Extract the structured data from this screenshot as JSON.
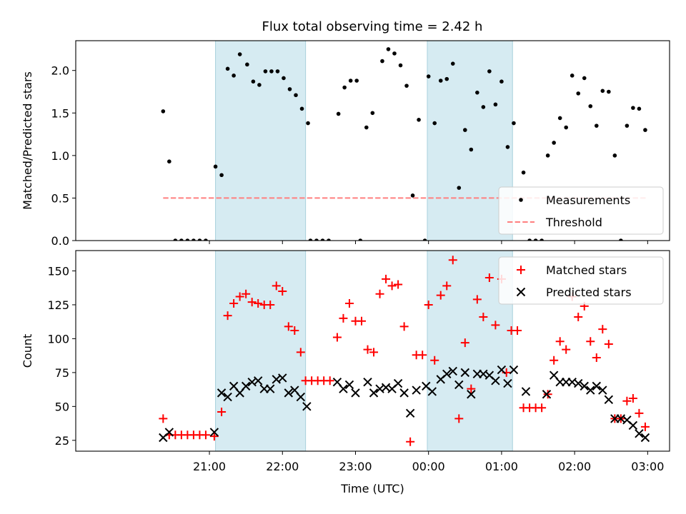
{
  "title": "Flux total observing time = 2.42 h",
  "chart_data": [
    {
      "type": "scatter",
      "ylabel": "Matched/Predicted stars",
      "xlabel": "",
      "ylim": [
        0,
        2.35
      ],
      "yticks": [
        0.0,
        0.5,
        1.0,
        1.5,
        2.0
      ],
      "ytick_labels": [
        "0.0",
        "0.5",
        "1.0",
        "1.5",
        "2.0"
      ],
      "x_format": "HH:MM elapsed hours since 21:00 UTC",
      "shaded_intervals": [
        [
          "21:05",
          "22:19"
        ],
        [
          "23:59",
          "01:09"
        ]
      ],
      "threshold": {
        "name": "Threshold",
        "y": 0.5,
        "x_range": [
          "20:22",
          "02:59"
        ],
        "color": "#ff7f7f"
      },
      "legend": {
        "position": "lower-right",
        "entries": [
          "Measurements",
          "Threshold"
        ]
      },
      "series": [
        {
          "name": "Measurements",
          "color": "#000000",
          "points": [
            [
              "20:22",
              1.52
            ],
            [
              "20:27",
              0.93
            ],
            [
              "20:32",
              0.0
            ],
            [
              "20:37",
              0.0
            ],
            [
              "20:42",
              0.0
            ],
            [
              "20:47",
              0.0
            ],
            [
              "20:52",
              0.0
            ],
            [
              "20:57",
              0.0
            ],
            [
              "21:05",
              0.87
            ],
            [
              "21:10",
              0.77
            ],
            [
              "21:15",
              2.02
            ],
            [
              "21:20",
              1.94
            ],
            [
              "21:25",
              2.19
            ],
            [
              "21:31",
              2.07
            ],
            [
              "21:36",
              1.87
            ],
            [
              "21:41",
              1.83
            ],
            [
              "21:46",
              1.99
            ],
            [
              "21:51",
              1.99
            ],
            [
              "21:56",
              1.99
            ],
            [
              "22:01",
              1.91
            ],
            [
              "22:06",
              1.78
            ],
            [
              "22:11",
              1.71
            ],
            [
              "22:16",
              1.55
            ],
            [
              "22:21",
              1.38
            ],
            [
              "22:23",
              0.0
            ],
            [
              "22:28",
              0.0
            ],
            [
              "22:33",
              0.0
            ],
            [
              "22:38",
              0.0
            ],
            [
              "22:46",
              1.49
            ],
            [
              "22:51",
              1.8
            ],
            [
              "22:56",
              1.88
            ],
            [
              "23:01",
              1.88
            ],
            [
              "23:04",
              0.0
            ],
            [
              "23:09",
              1.33
            ],
            [
              "23:14",
              1.5
            ],
            [
              "23:22",
              2.11
            ],
            [
              "23:27",
              2.25
            ],
            [
              "23:32",
              2.2
            ],
            [
              "23:37",
              2.06
            ],
            [
              "23:42",
              1.82
            ],
            [
              "23:47",
              0.53
            ],
            [
              "23:52",
              1.42
            ],
            [
              "23:57",
              0.0
            ],
            [
              "00:00",
              1.93
            ],
            [
              "00:05",
              1.38
            ],
            [
              "00:10",
              1.88
            ],
            [
              "00:15",
              1.9
            ],
            [
              "00:20",
              2.08
            ],
            [
              "00:25",
              0.62
            ],
            [
              "00:30",
              1.3
            ],
            [
              "00:35",
              1.07
            ],
            [
              "00:40",
              1.74
            ],
            [
              "00:45",
              1.57
            ],
            [
              "00:50",
              1.99
            ],
            [
              "00:55",
              1.6
            ],
            [
              "01:00",
              1.87
            ],
            [
              "01:05",
              1.1
            ],
            [
              "01:10",
              1.38
            ],
            [
              "01:18",
              0.8
            ],
            [
              "01:23",
              0.0
            ],
            [
              "01:28",
              0.0
            ],
            [
              "01:33",
              0.0
            ],
            [
              "01:38",
              1.0
            ],
            [
              "01:43",
              1.15
            ],
            [
              "01:48",
              1.44
            ],
            [
              "01:53",
              1.33
            ],
            [
              "01:58",
              1.94
            ],
            [
              "02:03",
              1.73
            ],
            [
              "02:08",
              1.91
            ],
            [
              "02:13",
              1.58
            ],
            [
              "02:18",
              1.35
            ],
            [
              "02:23",
              1.76
            ],
            [
              "02:28",
              1.75
            ],
            [
              "02:33",
              1.0
            ],
            [
              "02:38",
              0.0
            ],
            [
              "02:43",
              1.35
            ],
            [
              "02:48",
              1.56
            ],
            [
              "02:53",
              1.55
            ],
            [
              "02:58",
              1.3
            ]
          ]
        }
      ]
    },
    {
      "type": "scatter",
      "ylabel": "Count",
      "xlabel": "Time (UTC)",
      "ylim": [
        17,
        165
      ],
      "yticks": [
        25,
        50,
        75,
        100,
        125,
        150
      ],
      "ytick_labels": [
        "25",
        "50",
        "75",
        "100",
        "125",
        "150"
      ],
      "xticks": [
        "21:00",
        "22:00",
        "23:00",
        "00:00",
        "01:00",
        "02:00",
        "03:00"
      ],
      "shaded_intervals": [
        [
          "21:05",
          "22:19"
        ],
        [
          "23:59",
          "01:09"
        ]
      ],
      "legend": {
        "position": "top-right",
        "entries": [
          "Matched stars",
          "Predicted stars"
        ]
      },
      "series": [
        {
          "name": "Matched stars",
          "marker": "plus",
          "color": "#ff0000",
          "points": [
            [
              "20:22",
              41
            ],
            [
              "20:27",
              29
            ],
            [
              "20:32",
              29
            ],
            [
              "20:37",
              29
            ],
            [
              "20:42",
              29
            ],
            [
              "20:47",
              29
            ],
            [
              "20:52",
              29
            ],
            [
              "20:57",
              29
            ],
            [
              "21:04",
              28
            ],
            [
              "21:10",
              46
            ],
            [
              "21:15",
              117
            ],
            [
              "21:20",
              126
            ],
            [
              "21:25",
              131
            ],
            [
              "21:30",
              133
            ],
            [
              "21:35",
              127
            ],
            [
              "21:40",
              126
            ],
            [
              "21:45",
              125
            ],
            [
              "21:50",
              125
            ],
            [
              "21:55",
              139
            ],
            [
              "22:00",
              135
            ],
            [
              "22:05",
              109
            ],
            [
              "22:10",
              106
            ],
            [
              "22:15",
              90
            ],
            [
              "22:19",
              69
            ],
            [
              "22:24",
              69
            ],
            [
              "22:29",
              69
            ],
            [
              "22:34",
              69
            ],
            [
              "22:39",
              69
            ],
            [
              "22:45",
              101
            ],
            [
              "22:50",
              115
            ],
            [
              "22:55",
              126
            ],
            [
              "23:00",
              113
            ],
            [
              "23:05",
              113
            ],
            [
              "23:10",
              92
            ],
            [
              "23:15",
              90
            ],
            [
              "23:20",
              133
            ],
            [
              "23:25",
              144
            ],
            [
              "23:30",
              139
            ],
            [
              "23:35",
              140
            ],
            [
              "23:40",
              109
            ],
            [
              "23:45",
              24
            ],
            [
              "23:50",
              88
            ],
            [
              "23:55",
              88
            ],
            [
              "00:00",
              125
            ],
            [
              "00:05",
              84
            ],
            [
              "00:10",
              132
            ],
            [
              "00:15",
              139
            ],
            [
              "00:20",
              158
            ],
            [
              "00:25",
              41
            ],
            [
              "00:30",
              97
            ],
            [
              "00:35",
              63
            ],
            [
              "00:40",
              129
            ],
            [
              "00:45",
              116
            ],
            [
              "00:50",
              145
            ],
            [
              "00:55",
              110
            ],
            [
              "01:00",
              144
            ],
            [
              "01:04",
              75
            ],
            [
              "01:08",
              106
            ],
            [
              "01:13",
              106
            ],
            [
              "01:18",
              49
            ],
            [
              "01:23",
              49
            ],
            [
              "01:28",
              49
            ],
            [
              "01:33",
              49
            ],
            [
              "01:38",
              59
            ],
            [
              "01:43",
              84
            ],
            [
              "01:48",
              98
            ],
            [
              "01:53",
              92
            ],
            [
              "01:58",
              131
            ],
            [
              "02:03",
              116
            ],
            [
              "02:08",
              124
            ],
            [
              "02:13",
              98
            ],
            [
              "02:18",
              86
            ],
            [
              "02:23",
              107
            ],
            [
              "02:28",
              96
            ],
            [
              "02:33",
              41
            ],
            [
              "02:38",
              41
            ],
            [
              "02:43",
              54
            ],
            [
              "02:48",
              56
            ],
            [
              "02:53",
              45
            ],
            [
              "02:58",
              35
            ]
          ]
        },
        {
          "name": "Predicted stars",
          "marker": "x",
          "color": "#000000",
          "points": [
            [
              "20:22",
              27
            ],
            [
              "20:27",
              31
            ],
            [
              "21:04",
              31
            ],
            [
              "21:10",
              60
            ],
            [
              "21:15",
              57
            ],
            [
              "21:20",
              65
            ],
            [
              "21:25",
              60
            ],
            [
              "21:30",
              65
            ],
            [
              "21:35",
              68
            ],
            [
              "21:40",
              69
            ],
            [
              "21:45",
              63
            ],
            [
              "21:50",
              63
            ],
            [
              "21:55",
              70
            ],
            [
              "22:00",
              71
            ],
            [
              "22:05",
              60
            ],
            [
              "22:10",
              62
            ],
            [
              "22:15",
              57
            ],
            [
              "22:20",
              50
            ],
            [
              "22:45",
              68
            ],
            [
              "22:50",
              63
            ],
            [
              "22:55",
              66
            ],
            [
              "23:00",
              60
            ],
            [
              "23:10",
              68
            ],
            [
              "23:15",
              60
            ],
            [
              "23:20",
              63
            ],
            [
              "23:25",
              64
            ],
            [
              "23:30",
              63
            ],
            [
              "23:35",
              67
            ],
            [
              "23:40",
              60
            ],
            [
              "23:45",
              45
            ],
            [
              "23:50",
              62
            ],
            [
              "23:58",
              65
            ],
            [
              "00:03",
              61
            ],
            [
              "00:10",
              70
            ],
            [
              "00:15",
              74
            ],
            [
              "00:20",
              76
            ],
            [
              "00:25",
              66
            ],
            [
              "00:30",
              75
            ],
            [
              "00:35",
              59
            ],
            [
              "00:40",
              74
            ],
            [
              "00:45",
              74
            ],
            [
              "00:50",
              73
            ],
            [
              "00:55",
              69
            ],
            [
              "01:00",
              77
            ],
            [
              "01:05",
              67
            ],
            [
              "01:10",
              77
            ],
            [
              "01:20",
              61
            ],
            [
              "01:37",
              59
            ],
            [
              "01:43",
              73
            ],
            [
              "01:48",
              68
            ],
            [
              "01:53",
              68
            ],
            [
              "01:58",
              68
            ],
            [
              "02:03",
              67
            ],
            [
              "02:08",
              65
            ],
            [
              "02:13",
              62
            ],
            [
              "02:18",
              65
            ],
            [
              "02:23",
              62
            ],
            [
              "02:28",
              55
            ],
            [
              "02:33",
              41
            ],
            [
              "02:38",
              41
            ],
            [
              "02:43",
              40
            ],
            [
              "02:48",
              36
            ],
            [
              "02:53",
              30
            ],
            [
              "02:58",
              27
            ]
          ]
        }
      ]
    }
  ]
}
